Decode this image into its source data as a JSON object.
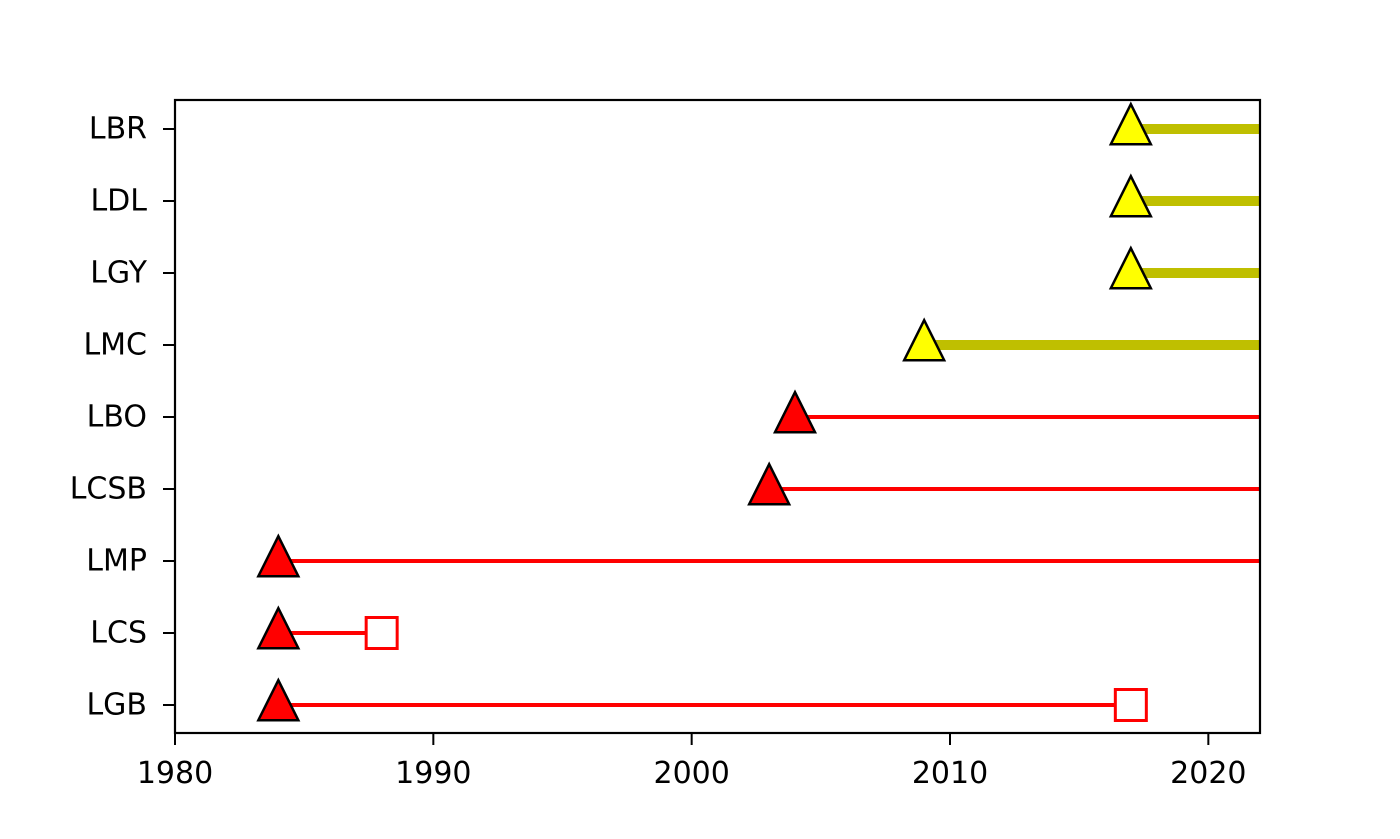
{
  "chart_data": {
    "type": "timeline",
    "title": "",
    "xlabel": "",
    "ylabel": "",
    "xlim": [
      1980,
      2022
    ],
    "x_ticks": [
      1980,
      1990,
      2000,
      2010,
      2020
    ],
    "grid": false,
    "legend": "none",
    "colors": {
      "red": "#ff0000",
      "olive": "#bfbf00",
      "yellow": "#ffff00",
      "edge": "#000000"
    },
    "rows": [
      {
        "label": "LGB",
        "start": 1984,
        "end": 2017,
        "group": "red",
        "ended": true
      },
      {
        "label": "LCS",
        "start": 1984,
        "end": 1988,
        "group": "red",
        "ended": true
      },
      {
        "label": "LMP",
        "start": 1984,
        "end": null,
        "group": "red",
        "ended": false
      },
      {
        "label": "LCSB",
        "start": 2003,
        "end": null,
        "group": "red",
        "ended": false
      },
      {
        "label": "LBO",
        "start": 2004,
        "end": null,
        "group": "red",
        "ended": false
      },
      {
        "label": "LMC",
        "start": 2009,
        "end": null,
        "group": "yellow",
        "ended": false
      },
      {
        "label": "LGY",
        "start": 2017,
        "end": null,
        "group": "yellow",
        "ended": false
      },
      {
        "label": "LDL",
        "start": 2017,
        "end": null,
        "group": "yellow",
        "ended": false
      },
      {
        "label": "LBR",
        "start": 2017,
        "end": null,
        "group": "yellow",
        "ended": false
      }
    ]
  }
}
